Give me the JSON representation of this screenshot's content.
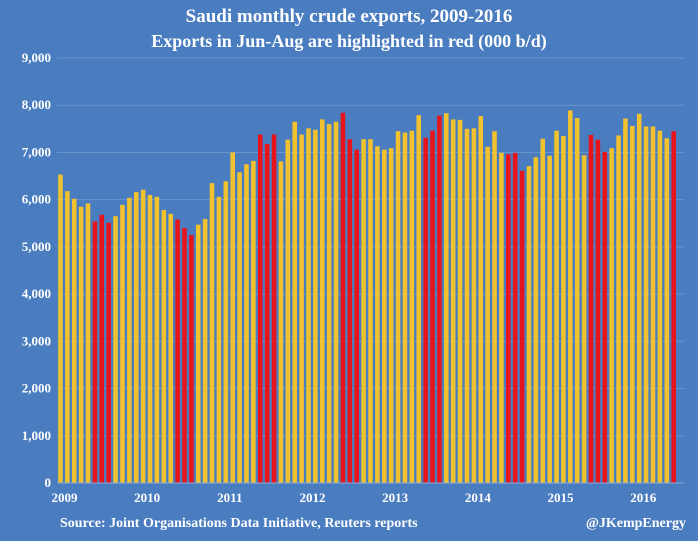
{
  "chart_data": {
    "type": "bar",
    "title": "Saudi monthly crude exports, 2009-2016",
    "subtitle": "Exports in Jun-Aug are highlighted in red (000 b/d)",
    "xlabel": "",
    "ylabel": "",
    "ylim": [
      0,
      9000
    ],
    "yticks": [
      "0",
      "1,000",
      "2,000",
      "3,000",
      "4,000",
      "5,000",
      "6,000",
      "7,000",
      "8,000",
      "9,000"
    ],
    "ytick_values": [
      0,
      1000,
      2000,
      3000,
      4000,
      5000,
      6000,
      7000,
      8000,
      9000
    ],
    "xtick_labels": [
      "2009",
      "2010",
      "2011",
      "2012",
      "2013",
      "2014",
      "2015",
      "2016"
    ],
    "grid": true,
    "colors": {
      "normal": "#f2c12e",
      "highlight": "#e8141c",
      "background": "#4a7cc0",
      "grid": "#6b93cc",
      "text": "#ffffff"
    },
    "series": [
      {
        "name": "Saudi crude exports (000 b/d)",
        "start": "2009-01",
        "values": [
          6530,
          6180,
          6020,
          5850,
          5920,
          5540,
          5680,
          5510,
          5650,
          5890,
          6040,
          6160,
          6210,
          6100,
          6060,
          5780,
          5700,
          5580,
          5400,
          5250,
          5470,
          5590,
          6350,
          6060,
          6390,
          7000,
          6580,
          6750,
          6820,
          7380,
          7180,
          7380,
          6810,
          7270,
          7650,
          7380,
          7510,
          7480,
          7700,
          7600,
          7650,
          7840,
          7280,
          7060,
          7280,
          7280,
          7130,
          7060,
          7090,
          7450,
          7420,
          7460,
          7790,
          7310,
          7460,
          7780,
          7830,
          7700,
          7690,
          7500,
          7510,
          7770,
          7120,
          7450,
          6990,
          6960,
          6990,
          6610,
          6710,
          6900,
          7290,
          6930,
          7460,
          7350,
          7890,
          7730,
          6940,
          7370,
          7270,
          7010,
          7090,
          7360,
          7720,
          7560,
          7820,
          7550,
          7550,
          7460,
          7300,
          7450
        ]
      }
    ]
  },
  "footer": {
    "source": "Source: Joint Organisations Data Initiative, Reuters reports",
    "credit": "@JKempEnergy"
  }
}
